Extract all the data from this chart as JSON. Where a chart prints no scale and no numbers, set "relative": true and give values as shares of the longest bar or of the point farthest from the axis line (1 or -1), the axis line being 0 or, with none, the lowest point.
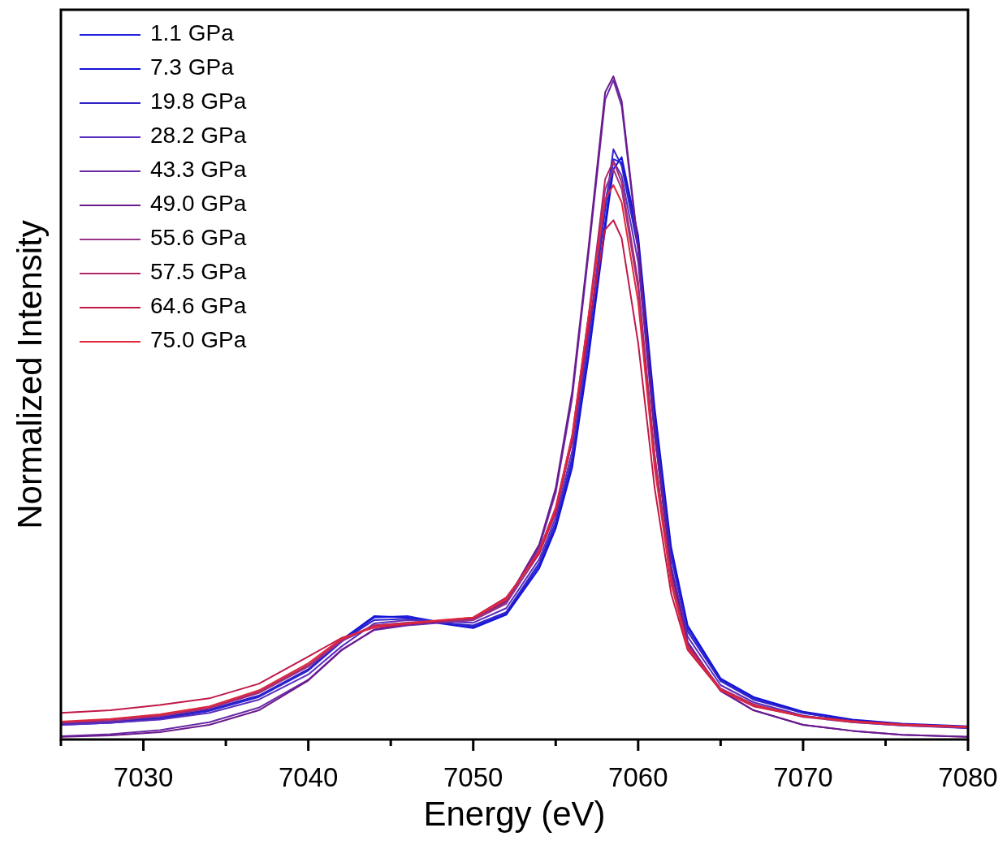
{
  "chart_data": {
    "type": "line",
    "relative": true,
    "xlabel": "Energy (eV)",
    "ylabel": "Normalized Intensity",
    "xlim": [
      7025,
      7080
    ],
    "xticks": [
      {
        "value": 7025,
        "label": null
      },
      7030,
      {
        "value": 7035,
        "label": null
      },
      7040,
      {
        "value": 7045,
        "label": null
      },
      7050,
      {
        "value": 7055,
        "label": null
      },
      7060,
      {
        "value": 7065,
        "label": null
      },
      7070,
      {
        "value": 7075,
        "label": null
      },
      7080
    ],
    "tick_labels": "x",
    "legend": "top left",
    "grid": false,
    "marker": "none",
    "line_style": "solid",
    "x": [
      7025,
      7028,
      7031,
      7034,
      7037,
      7040,
      7042,
      7044,
      7046,
      7048,
      7050,
      7052,
      7054,
      7055,
      7056,
      7057,
      7058,
      7058.5,
      7059,
      7060,
      7061,
      7062,
      7063,
      7065,
      7067,
      7070,
      7073,
      7076,
      7080
    ],
    "series": [
      {
        "name": "1.1 GPa",
        "color": "#2424e0",
        "values": [
          0.022,
          0.025,
          0.031,
          0.043,
          0.064,
          0.104,
          0.147,
          0.184,
          0.186,
          0.177,
          0.17,
          0.19,
          0.262,
          0.322,
          0.418,
          0.585,
          0.78,
          0.875,
          0.87,
          0.75,
          0.49,
          0.28,
          0.168,
          0.09,
          0.062,
          0.04,
          0.028,
          0.023,
          0.017
        ]
      },
      {
        "name": "7.3 GPa",
        "color": "#1212d8",
        "values": [
          0.024,
          0.027,
          0.033,
          0.045,
          0.066,
          0.106,
          0.15,
          0.186,
          0.184,
          0.175,
          0.168,
          0.188,
          0.258,
          0.318,
          0.41,
          0.578,
          0.77,
          0.86,
          0.878,
          0.76,
          0.5,
          0.29,
          0.172,
          0.092,
          0.064,
          0.042,
          0.03,
          0.024,
          0.02
        ]
      },
      {
        "name": "19.8 GPa",
        "color": "#3022c6",
        "values": [
          0.023,
          0.026,
          0.032,
          0.044,
          0.065,
          0.105,
          0.148,
          0.18,
          0.182,
          0.176,
          0.172,
          0.192,
          0.266,
          0.328,
          0.425,
          0.6,
          0.8,
          0.89,
          0.865,
          0.74,
          0.48,
          0.275,
          0.163,
          0.088,
          0.06,
          0.04,
          0.028,
          0.022,
          0.018
        ]
      },
      {
        "name": "28.2 GPa",
        "color": "#5a2ebe",
        "values": [
          0.022,
          0.025,
          0.03,
          0.04,
          0.06,
          0.098,
          0.14,
          0.175,
          0.18,
          0.178,
          0.176,
          0.198,
          0.272,
          0.335,
          0.435,
          0.61,
          0.81,
          0.872,
          0.85,
          0.72,
          0.46,
          0.262,
          0.155,
          0.082,
          0.056,
          0.036,
          0.026,
          0.021,
          0.017
        ]
      },
      {
        "name": "43.3 GPa",
        "color": "#6a2aa8",
        "values": [
          0.005,
          0.008,
          0.014,
          0.026,
          0.048,
          0.09,
          0.135,
          0.165,
          0.172,
          0.176,
          0.18,
          0.205,
          0.29,
          0.372,
          0.515,
          0.735,
          0.965,
          0.994,
          0.955,
          0.74,
          0.46,
          0.255,
          0.146,
          0.073,
          0.044,
          0.022,
          0.013,
          0.007,
          0.004
        ]
      },
      {
        "name": "49.0 GPa",
        "color": "#6b1a8c",
        "values": [
          0.004,
          0.006,
          0.011,
          0.022,
          0.044,
          0.089,
          0.134,
          0.166,
          0.174,
          0.178,
          0.181,
          0.208,
          0.294,
          0.379,
          0.525,
          0.744,
          0.976,
          1.0,
          0.963,
          0.744,
          0.464,
          0.257,
          0.147,
          0.074,
          0.044,
          0.022,
          0.013,
          0.007,
          0.004
        ]
      },
      {
        "name": "55.6 GPa",
        "color": "#9a3486",
        "values": [
          0.025,
          0.028,
          0.035,
          0.047,
          0.07,
          0.11,
          0.148,
          0.172,
          0.176,
          0.178,
          0.18,
          0.205,
          0.28,
          0.345,
          0.45,
          0.63,
          0.83,
          0.86,
          0.83,
          0.68,
          0.42,
          0.24,
          0.14,
          0.076,
          0.052,
          0.034,
          0.026,
          0.021,
          0.018
        ]
      },
      {
        "name": "57.5 GPa",
        "color": "#b02868",
        "values": [
          0.026,
          0.03,
          0.036,
          0.048,
          0.072,
          0.112,
          0.15,
          0.172,
          0.176,
          0.179,
          0.182,
          0.21,
          0.285,
          0.35,
          0.458,
          0.64,
          0.845,
          0.872,
          0.84,
          0.69,
          0.43,
          0.245,
          0.142,
          0.077,
          0.053,
          0.035,
          0.027,
          0.022,
          0.019
        ]
      },
      {
        "name": "64.6 GPa",
        "color": "#c01848",
        "values": [
          0.04,
          0.044,
          0.052,
          0.062,
          0.084,
          0.125,
          0.153,
          0.169,
          0.174,
          0.179,
          0.184,
          0.214,
          0.281,
          0.342,
          0.452,
          0.622,
          0.769,
          0.783,
          0.756,
          0.598,
          0.379,
          0.22,
          0.135,
          0.074,
          0.05,
          0.035,
          0.028,
          0.023,
          0.019
        ]
      },
      {
        "name": "75.0 GPa",
        "color": "#e0283c",
        "values": [
          0.027,
          0.031,
          0.038,
          0.05,
          0.074,
          0.115,
          0.152,
          0.17,
          0.175,
          0.18,
          0.184,
          0.212,
          0.284,
          0.348,
          0.458,
          0.64,
          0.815,
          0.836,
          0.81,
          0.66,
          0.41,
          0.235,
          0.138,
          0.075,
          0.051,
          0.035,
          0.027,
          0.022,
          0.019
        ]
      }
    ]
  }
}
